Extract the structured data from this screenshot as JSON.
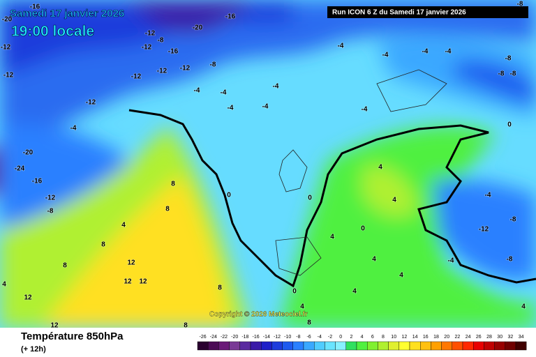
{
  "header": {
    "date": "Samedi 17 janvier 2026",
    "time": "19:00 locale",
    "run": "Run ICON 6 Z du Samedi 17 janvier 2026"
  },
  "copyright": "Copyright © 2026 Meteociel.fr",
  "footer": {
    "title": "Température 850hPa",
    "lead": "(+ 12h)"
  },
  "map_labels": [
    -16,
    -20,
    -12,
    -12,
    -12,
    -8,
    -12,
    -16,
    -12,
    -12,
    -8,
    -12,
    -16,
    -20,
    -4,
    -4,
    -4,
    -4,
    -8,
    -8,
    -8,
    -4,
    -4,
    -4,
    -4,
    -4,
    -4,
    -12,
    -4,
    -20,
    -24,
    -16,
    -12,
    -8,
    8,
    8,
    4,
    8,
    8,
    12,
    12,
    12,
    12,
    12,
    4,
    0,
    0,
    0,
    4,
    4,
    0,
    -4,
    -8,
    -12,
    -8,
    -4,
    4,
    4,
    4,
    0,
    4,
    4,
    8,
    8,
    8,
    4,
    -8
  ],
  "scale": {
    "ticks": [
      -26,
      -24,
      -22,
      -20,
      -18,
      -16,
      -14,
      -12,
      -10,
      -8,
      -6,
      -4,
      -2,
      0,
      2,
      4,
      6,
      8,
      10,
      12,
      14,
      16,
      18,
      20,
      22,
      24,
      26,
      28,
      30,
      32,
      34
    ],
    "colors": [
      "#2a0030",
      "#4b0a55",
      "#6a1a78",
      "#7a3a96",
      "#5a2aa0",
      "#3a1aa8",
      "#1e1ec8",
      "#1e3cdc",
      "#1e5aef",
      "#2a80ff",
      "#3aa8ff",
      "#50ccff",
      "#6ae4ff",
      "#88f0ff",
      "#30e060",
      "#50f040",
      "#80f030",
      "#b0f030",
      "#e0f030",
      "#ffff30",
      "#ffe020",
      "#ffc010",
      "#ffa000",
      "#ff7800",
      "#ff5000",
      "#ff2800",
      "#e80000",
      "#c00000",
      "#980000",
      "#700000",
      "#400000"
    ]
  }
}
